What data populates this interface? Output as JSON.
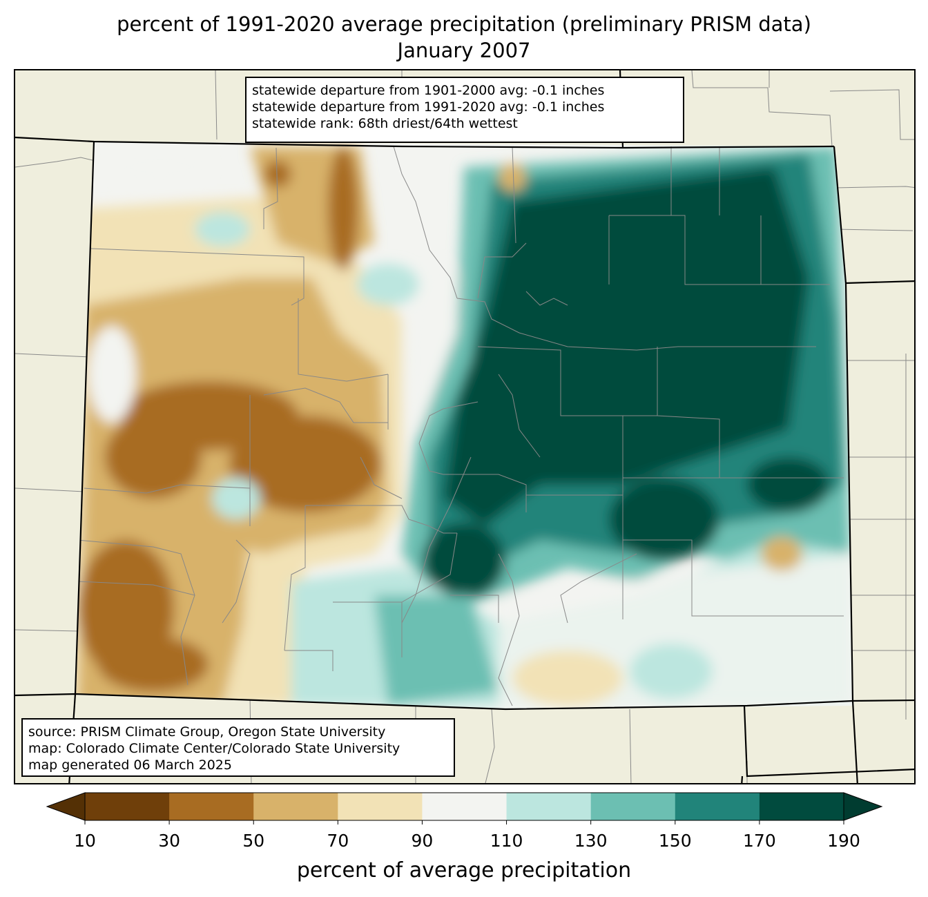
{
  "title": {
    "line1": "percent of 1991-2020 average precipitation (preliminary PRISM data)",
    "line2": "January 2007"
  },
  "stats": {
    "line1": "statewide departure from 1901-2000 avg: -0.1 inches",
    "line2": "statewide departure from 1991-2020 avg: -0.1 inches",
    "line3": "statewide rank: 68th driest/64th wettest"
  },
  "source": {
    "line1": "source: PRISM Climate Group, Oregon State University",
    "line2": "map: Colorado Climate Center/Colorado State University",
    "line3": "map generated 06 March 2025"
  },
  "legend": {
    "label": "percent of average precipitation",
    "ticks": [
      "10",
      "30",
      "50",
      "70",
      "90",
      "110",
      "130",
      "150",
      "170",
      "190"
    ],
    "bins": [
      {
        "range": "<10",
        "color": "#543005"
      },
      {
        "range": "10-30",
        "color": "#6f3f0a"
      },
      {
        "range": "30-50",
        "color": "#a86c22"
      },
      {
        "range": "50-70",
        "color": "#d8b26a"
      },
      {
        "range": "70-90",
        "color": "#f2e2b6"
      },
      {
        "range": "90-110",
        "color": "#f3f4f1"
      },
      {
        "range": "110-130",
        "color": "#bce6df"
      },
      {
        "range": "130-150",
        "color": "#6cbfb2"
      },
      {
        "range": "150-170",
        "color": "#21847a"
      },
      {
        "range": "170-190",
        "color": "#014b3e"
      },
      {
        "range": ">190",
        "color": "#003c30"
      }
    ]
  },
  "colors": {
    "background": "#efeedd",
    "county_lines": "#888888",
    "state_lines": "#000000"
  }
}
